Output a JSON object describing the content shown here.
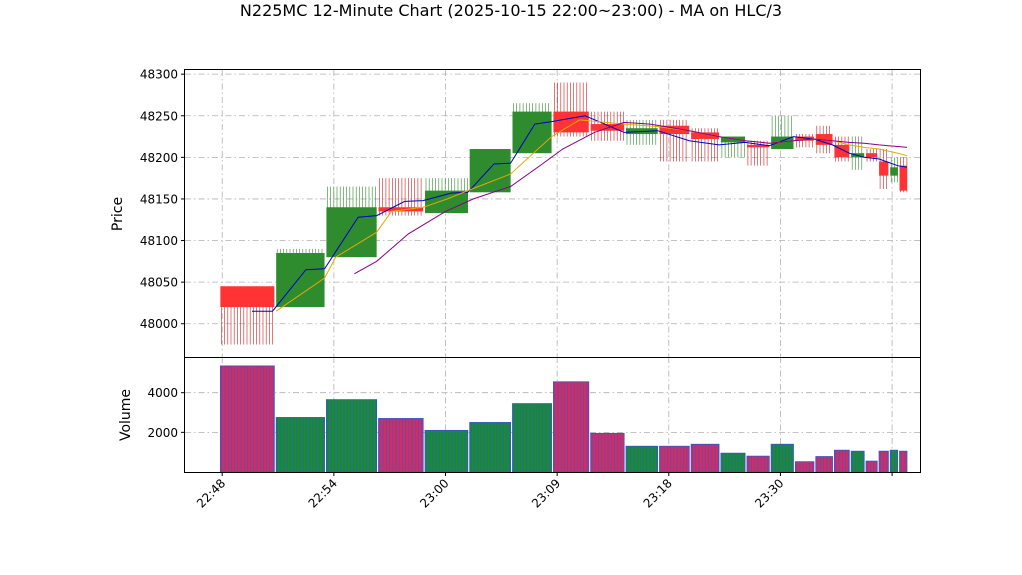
{
  "chart_data": {
    "type": "candlestick",
    "title": "N225MC 12-Minute Chart (2025-10-15 22:00~23:00) - MA on HLC/3",
    "price_panel": {
      "ylabel": "Price",
      "ylim": [
        47960,
        48305
      ],
      "yticks": [
        48000,
        48050,
        48100,
        48150,
        48200,
        48250,
        48300
      ]
    },
    "volume_panel": {
      "ylabel": "Volume",
      "ylim": [
        0,
        5800
      ],
      "yticks": [
        2000,
        4000
      ]
    },
    "xlim": [
      -2,
      37.5
    ],
    "x_tick_positions": [
      0,
      6,
      12,
      18,
      24,
      30,
      36
    ],
    "x_tick_labels": [
      "22:48",
      "22:54",
      "23:00",
      "23:09",
      "23:18",
      "23:30",
      ""
    ],
    "candles": [
      {
        "x0": -0.1,
        "x1": 2.8,
        "open": 48045,
        "high": 48045,
        "low": 47975,
        "close": 48020,
        "volume": 5350,
        "dir": "down"
      },
      {
        "x0": 2.9,
        "x1": 5.5,
        "open": 48020,
        "high": 48090,
        "low": 48020,
        "close": 48085,
        "volume": 2750,
        "dir": "up"
      },
      {
        "x0": 5.6,
        "x1": 8.3,
        "open": 48080,
        "high": 48165,
        "low": 48080,
        "close": 48140,
        "volume": 3650,
        "dir": "up"
      },
      {
        "x0": 8.4,
        "x1": 10.8,
        "open": 48140,
        "high": 48175,
        "low": 48130,
        "close": 48135,
        "volume": 2700,
        "dir": "down"
      },
      {
        "x0": 10.9,
        "x1": 13.2,
        "open": 48133,
        "high": 48175,
        "low": 48133,
        "close": 48160,
        "volume": 2100,
        "dir": "up"
      },
      {
        "x0": 13.3,
        "x1": 15.5,
        "open": 48158,
        "high": 48210,
        "low": 48158,
        "close": 48210,
        "volume": 2500,
        "dir": "up"
      },
      {
        "x0": 15.6,
        "x1": 17.7,
        "open": 48205,
        "high": 48265,
        "low": 48205,
        "close": 48255,
        "volume": 3450,
        "dir": "up"
      },
      {
        "x0": 17.8,
        "x1": 19.7,
        "open": 48255,
        "high": 48290,
        "low": 48225,
        "close": 48230,
        "volume": 4550,
        "dir": "down"
      },
      {
        "x0": 19.8,
        "x1": 21.6,
        "open": 48240,
        "high": 48255,
        "low": 48220,
        "close": 48232,
        "volume": 1950,
        "dir": "down"
      },
      {
        "x0": 21.7,
        "x1": 23.4,
        "open": 48228,
        "high": 48245,
        "low": 48215,
        "close": 48235,
        "volume": 1300,
        "dir": "up"
      },
      {
        "x0": 23.5,
        "x1": 25.1,
        "open": 48238,
        "high": 48245,
        "low": 48195,
        "close": 48228,
        "volume": 1300,
        "dir": "down"
      },
      {
        "x0": 25.2,
        "x1": 26.7,
        "open": 48230,
        "high": 48235,
        "low": 48195,
        "close": 48222,
        "volume": 1400,
        "dir": "down"
      },
      {
        "x0": 26.8,
        "x1": 28.1,
        "open": 48218,
        "high": 48225,
        "low": 48200,
        "close": 48225,
        "volume": 950,
        "dir": "up"
      },
      {
        "x0": 28.2,
        "x1": 29.4,
        "open": 48215,
        "high": 48220,
        "low": 48190,
        "close": 48212,
        "volume": 800,
        "dir": "down"
      },
      {
        "x0": 29.5,
        "x1": 30.7,
        "open": 48210,
        "high": 48250,
        "low": 48210,
        "close": 48225,
        "volume": 1400,
        "dir": "up"
      },
      {
        "x0": 30.8,
        "x1": 31.8,
        "open": 48225,
        "high": 48228,
        "low": 48212,
        "close": 48220,
        "volume": 520,
        "dir": "down"
      },
      {
        "x0": 31.9,
        "x1": 32.8,
        "open": 48228,
        "high": 48238,
        "low": 48205,
        "close": 48215,
        "volume": 780,
        "dir": "down"
      },
      {
        "x0": 32.9,
        "x1": 33.7,
        "open": 48215,
        "high": 48225,
        "low": 48195,
        "close": 48200,
        "volume": 1100,
        "dir": "down"
      },
      {
        "x0": 33.8,
        "x1": 34.5,
        "open": 48200,
        "high": 48225,
        "low": 48185,
        "close": 48205,
        "volume": 1050,
        "dir": "up"
      },
      {
        "x0": 34.6,
        "x1": 35.2,
        "open": 48205,
        "high": 48210,
        "low": 48195,
        "close": 48200,
        "volume": 550,
        "dir": "down"
      },
      {
        "x0": 35.3,
        "x1": 35.8,
        "open": 48195,
        "high": 48210,
        "low": 48162,
        "close": 48178,
        "volume": 1050,
        "dir": "down"
      },
      {
        "x0": 35.9,
        "x1": 36.3,
        "open": 48178,
        "high": 48200,
        "low": 48170,
        "close": 48188,
        "volume": 1100,
        "dir": "up"
      },
      {
        "x0": 36.4,
        "x1": 36.8,
        "open": 48190,
        "high": 48200,
        "low": 48158,
        "close": 48160,
        "volume": 1050,
        "dir": "down"
      }
    ],
    "ma_lines": [
      {
        "color": "#0000cc",
        "points": [
          [
            1.6,
            48015
          ],
          [
            2.7,
            48015
          ],
          [
            4.5,
            48065
          ],
          [
            5.5,
            48066
          ],
          [
            7.3,
            48128
          ],
          [
            8.3,
            48130
          ],
          [
            9.8,
            48147
          ],
          [
            10.8,
            48148
          ],
          [
            12.3,
            48157
          ],
          [
            13.2,
            48158
          ],
          [
            14.6,
            48192
          ],
          [
            15.5,
            48193
          ],
          [
            16.8,
            48240
          ],
          [
            17.7,
            48243
          ],
          [
            19.5,
            48250
          ],
          [
            21.6,
            48230
          ],
          [
            23.4,
            48232
          ],
          [
            25.1,
            48220
          ],
          [
            26.7,
            48215
          ],
          [
            28.1,
            48218
          ],
          [
            29.4,
            48214
          ],
          [
            30.7,
            48225
          ],
          [
            31.8,
            48222
          ],
          [
            32.8,
            48215
          ],
          [
            33.7,
            48205
          ],
          [
            34.5,
            48200
          ],
          [
            35.3,
            48198
          ],
          [
            36.3,
            48190
          ],
          [
            36.8,
            48188
          ]
        ]
      },
      {
        "color": "#e8a800",
        "points": [
          [
            2.9,
            48015
          ],
          [
            5.5,
            48055
          ],
          [
            6.1,
            48080
          ],
          [
            8.3,
            48110
          ],
          [
            9.1,
            48135
          ],
          [
            10.8,
            48140
          ],
          [
            12.1,
            48150
          ],
          [
            13.2,
            48160
          ],
          [
            15.5,
            48180
          ],
          [
            17.7,
            48225
          ],
          [
            19.2,
            48245
          ],
          [
            21.6,
            48240
          ],
          [
            23.4,
            48237
          ],
          [
            25.1,
            48232
          ],
          [
            26.7,
            48225
          ],
          [
            28.1,
            48220
          ],
          [
            29.4,
            48217
          ],
          [
            30.7,
            48220
          ],
          [
            31.8,
            48222
          ],
          [
            32.8,
            48220
          ],
          [
            33.7,
            48215
          ],
          [
            34.5,
            48212
          ],
          [
            35.3,
            48210
          ],
          [
            36.3,
            48205
          ],
          [
            36.8,
            48202
          ]
        ]
      },
      {
        "color": "#880088",
        "points": [
          [
            7.1,
            48060
          ],
          [
            8.3,
            48075
          ],
          [
            10.0,
            48108
          ],
          [
            12.0,
            48135
          ],
          [
            13.5,
            48150
          ],
          [
            15.5,
            48165
          ],
          [
            17.2,
            48192
          ],
          [
            18.3,
            48210
          ],
          [
            20.0,
            48230
          ],
          [
            21.6,
            48242
          ],
          [
            23.0,
            48240
          ],
          [
            25.1,
            48232
          ],
          [
            26.7,
            48225
          ],
          [
            28.1,
            48220
          ],
          [
            29.4,
            48217
          ],
          [
            30.7,
            48220
          ],
          [
            31.8,
            48222
          ],
          [
            32.8,
            48220
          ],
          [
            33.7,
            48218
          ],
          [
            34.5,
            48217
          ],
          [
            35.3,
            48215
          ],
          [
            36.3,
            48213
          ],
          [
            36.8,
            48212
          ]
        ]
      }
    ],
    "up_color": "#2e8b2e",
    "down_color": "#ff3333",
    "wick_up_color": "#2e8b2e",
    "wick_down_color": "#cc2222",
    "vol_up_color": "#1a8a3a",
    "vol_down_color": "#c8306a",
    "vol_edge_color": "#3355cc"
  }
}
